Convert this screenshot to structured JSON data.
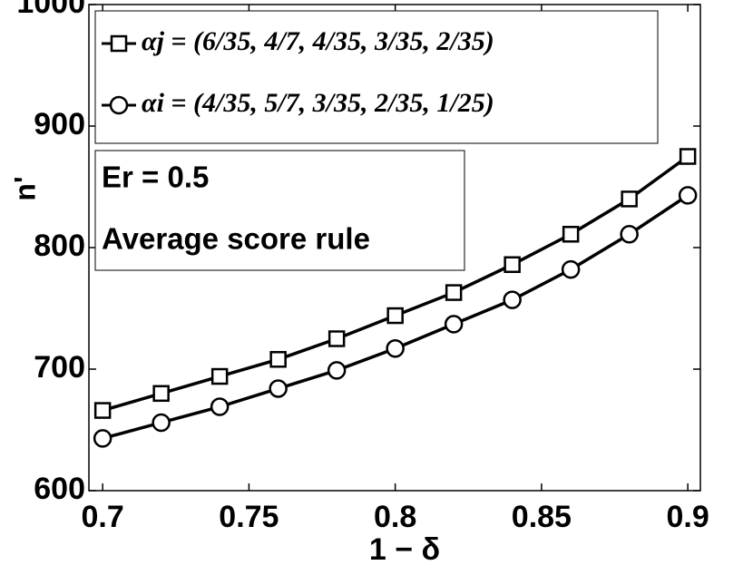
{
  "chart_data": {
    "type": "line",
    "x": [
      0.7,
      0.72,
      0.74,
      0.76,
      0.78,
      0.8,
      0.82,
      0.84,
      0.86,
      0.88,
      0.9
    ],
    "series": [
      {
        "name": "αj = (6/35, 4/7, 4/35, 3/35, 2/35)",
        "color": "#000000",
        "marker": "square",
        "values": [
          666,
          680,
          694,
          708,
          725,
          744,
          763,
          786,
          811,
          840,
          875
        ]
      },
      {
        "name": "αi = (4/35, 5/7, 3/35, 2/35, 1/25)",
        "color": "#000000",
        "marker": "circle",
        "values": [
          643,
          656,
          669,
          684,
          699,
          717,
          737,
          757,
          782,
          811,
          843
        ]
      }
    ],
    "xlabel": "1 − δ",
    "ylabel": "n'",
    "annotations": [
      "Er = 0.5",
      "Average score rule"
    ],
    "xlim": [
      0.6953,
      0.9043
    ],
    "ylim": [
      600,
      1000
    ],
    "xticks": [
      0.7,
      0.75,
      0.8,
      0.85,
      0.9
    ],
    "yticks": [
      600,
      700,
      800,
      900,
      1000
    ],
    "grid": false
  }
}
